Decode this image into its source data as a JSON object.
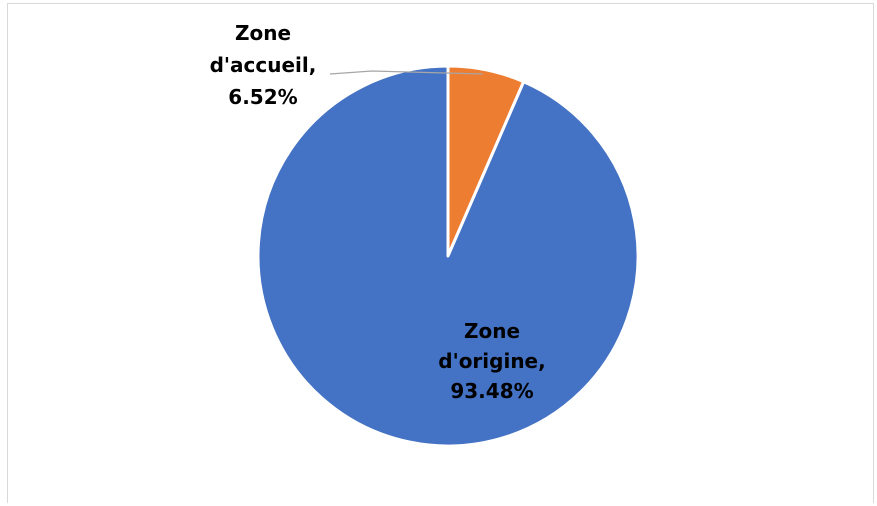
{
  "chart_data": {
    "type": "pie",
    "slices": [
      {
        "label": "Zone d'accueil",
        "value": 6.52,
        "display": "6.52%",
        "color": "#ED7D31",
        "label_lines": [
          "Zone",
          "d'accueil,",
          "6.52%"
        ]
      },
      {
        "label": "Zone d'origine",
        "value": 93.48,
        "display": "93.48%",
        "color": "#4472C4",
        "label_lines": [
          "Zone",
          "d'origine,",
          "93.48%"
        ]
      }
    ],
    "start_angle": "12 o'clock",
    "direction": "clockwise",
    "slice_border_color": "#FFFFFF",
    "leader_line_color": "#A6A6A6",
    "legend": "none",
    "title": ""
  }
}
